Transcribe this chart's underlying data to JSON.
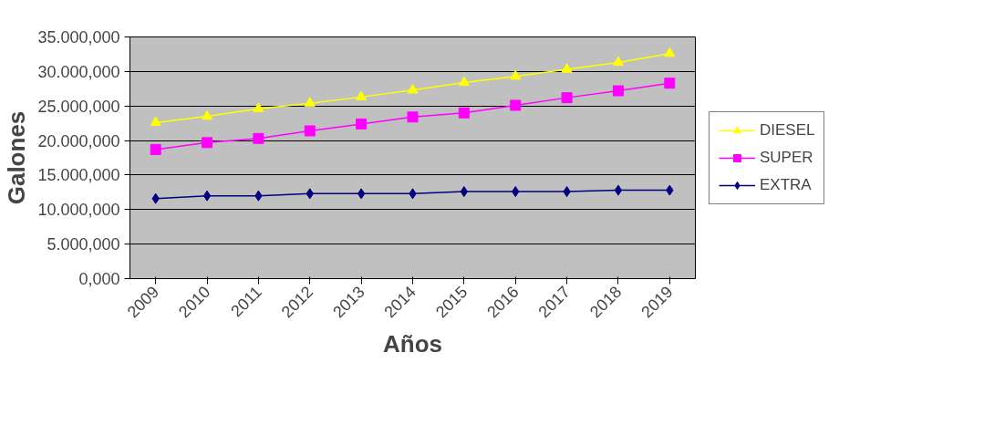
{
  "chart_data": {
    "type": "line",
    "xlabel": "Años",
    "ylabel": "Galones",
    "categories": [
      "2009",
      "2010",
      "2011",
      "2012",
      "2013",
      "2014",
      "2015",
      "2016",
      "2017",
      "2018",
      "2019"
    ],
    "series": [
      {
        "name": "DIESEL",
        "color": "#ffff00",
        "marker": "triangle",
        "values": [
          22600,
          23500,
          24600,
          25400,
          26300,
          27300,
          28400,
          29300,
          30300,
          31300,
          32600
        ]
      },
      {
        "name": "SUPER",
        "color": "#ff00ff",
        "marker": "square",
        "values": [
          18700,
          19700,
          20300,
          21400,
          22400,
          23400,
          24000,
          25100,
          26200,
          27200,
          28300
        ]
      },
      {
        "name": "EXTRA",
        "color": "#000080",
        "marker": "diamond",
        "values": [
          11600,
          12000,
          12000,
          12300,
          12300,
          12300,
          12600,
          12600,
          12600,
          12800,
          12800
        ]
      }
    ],
    "ylim": [
      0,
      35000
    ],
    "yticks": [
      {
        "value": 0,
        "label": "0,000"
      },
      {
        "value": 5000,
        "label": "5.000,000"
      },
      {
        "value": 10000,
        "label": "10.000,000"
      },
      {
        "value": 15000,
        "label": "15.000,000"
      },
      {
        "value": 20000,
        "label": "20.000,000"
      },
      {
        "value": 25000,
        "label": "25.000,000"
      },
      {
        "value": 30000,
        "label": "30.000,000"
      },
      {
        "value": 35000,
        "label": "35.000,000"
      }
    ],
    "grid": "y",
    "legend": "right"
  }
}
